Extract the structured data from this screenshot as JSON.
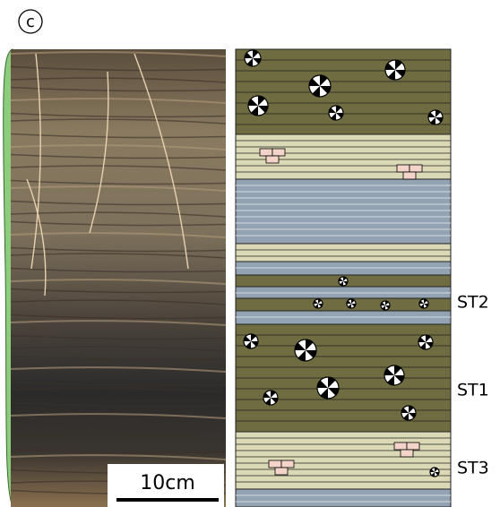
{
  "panel_label": "c",
  "scale_bar": "10cm",
  "log_labels": [
    "ST2",
    "ST1",
    "ST3"
  ]
}
